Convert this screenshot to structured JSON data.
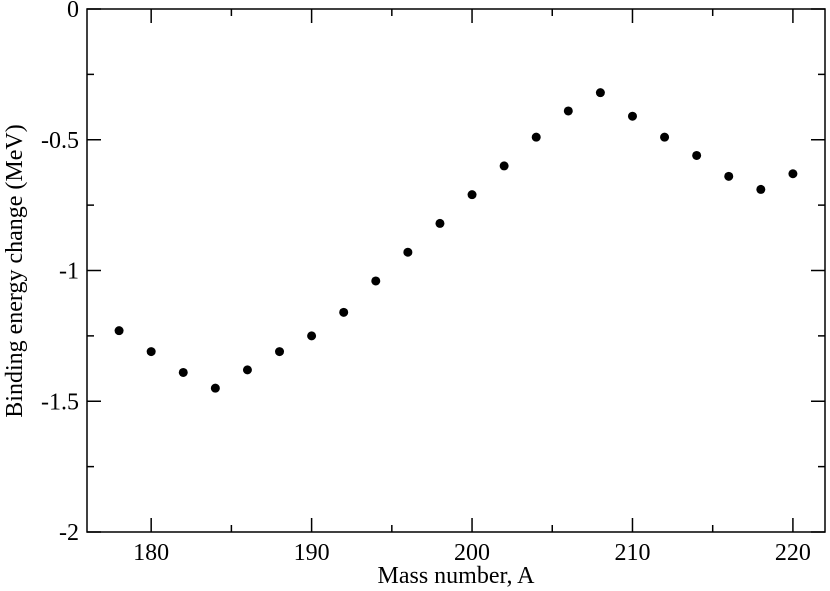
{
  "chart_data": {
    "type": "scatter",
    "title": "",
    "xlabel": "Mass number, A",
    "ylabel": "Binding energy change (MeV)",
    "xlim": [
      176,
      222
    ],
    "ylim": [
      -2,
      0
    ],
    "x_ticks": [
      180,
      190,
      200,
      210,
      220
    ],
    "x_tick_labels": [
      "180",
      "190",
      "200",
      "210",
      "220"
    ],
    "y_ticks": [
      0,
      -0.5,
      -1,
      -1.5,
      -2
    ],
    "y_tick_labels": [
      "0",
      "-0.5",
      "-1",
      "-1.5",
      "-2"
    ],
    "grid": false,
    "legend": "none",
    "marker_color": "#000000",
    "series": [
      {
        "x": [
          178,
          180,
          182,
          184,
          186,
          188,
          190,
          192,
          194,
          196,
          198,
          200,
          202,
          204,
          206,
          208,
          210,
          212,
          214,
          216,
          218,
          220
        ],
        "values": [
          -1.23,
          -1.31,
          -1.39,
          -1.45,
          -1.38,
          -1.31,
          -1.25,
          -1.16,
          -1.04,
          -0.93,
          -0.82,
          -0.71,
          -0.6,
          -0.49,
          -0.39,
          -0.32,
          -0.41,
          -0.49,
          -0.56,
          -0.64,
          -0.69,
          -0.63
        ]
      }
    ]
  }
}
